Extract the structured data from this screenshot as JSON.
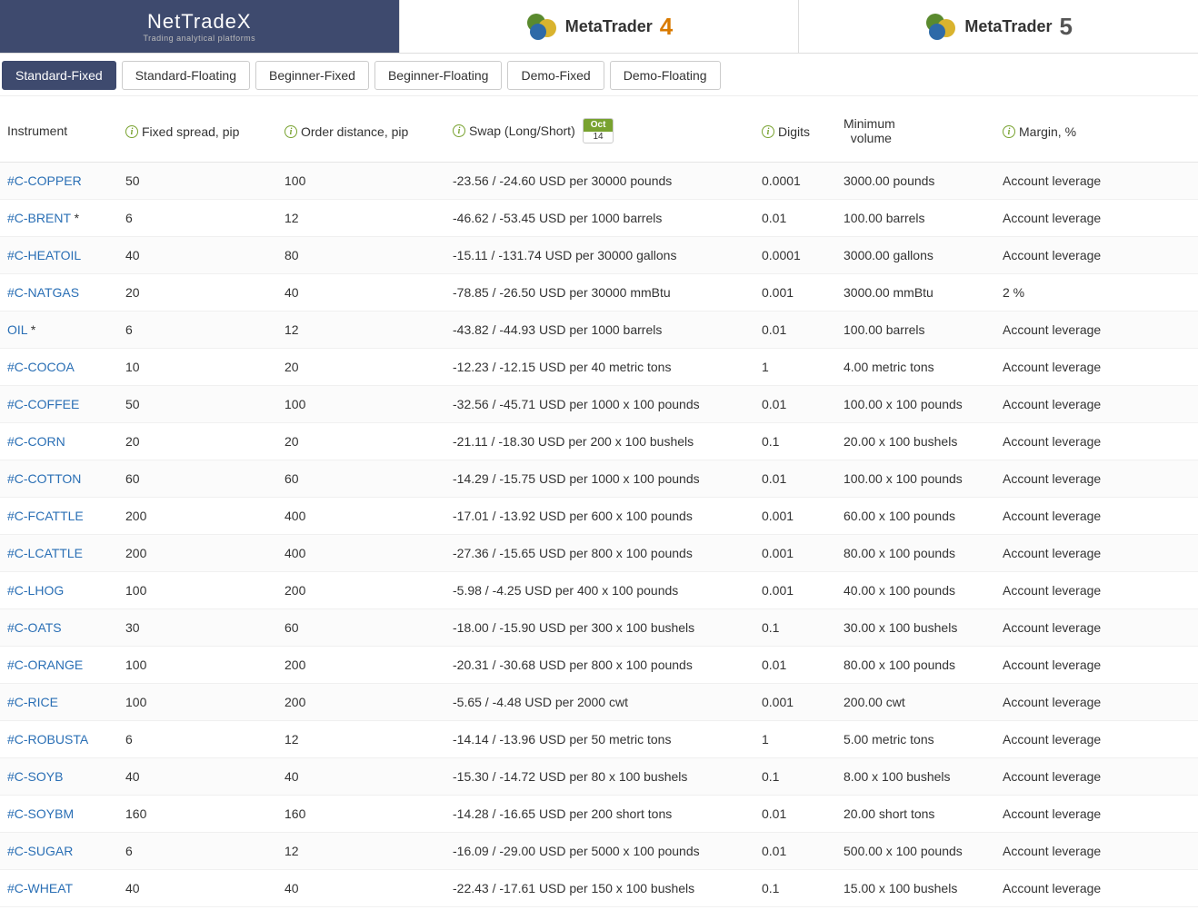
{
  "topTabs": {
    "nettradex": {
      "main": "NetTradeX",
      "sub": "Trading analytical platforms"
    },
    "mt4": {
      "text": "MetaTrader",
      "num": "4"
    },
    "mt5": {
      "text": "MetaTrader",
      "num": "5"
    }
  },
  "subTabs": [
    {
      "label": "Standard-Fixed",
      "active": true
    },
    {
      "label": "Standard-Floating",
      "active": false
    },
    {
      "label": "Beginner-Fixed",
      "active": false
    },
    {
      "label": "Beginner-Floating",
      "active": false
    },
    {
      "label": "Demo-Fixed",
      "active": false
    },
    {
      "label": "Demo-Floating",
      "active": false
    }
  ],
  "columns": {
    "instrument": "Instrument",
    "spread": "Fixed spread, pip",
    "order": "Order distance, pip",
    "swap": "Swap (Long/Short)",
    "digits": "Digits",
    "minvol_line1": "Minimum",
    "minvol_line2": "volume",
    "margin": "Margin, %"
  },
  "dateBadge": {
    "month": "Oct",
    "day": "14"
  },
  "rows": [
    {
      "instrument": "#C-COPPER",
      "star": false,
      "spread": "50",
      "order": "100",
      "swap": "-23.56 / -24.60 USD per 30000 pounds",
      "digits": "0.0001",
      "minvol": "3000.00 pounds",
      "margin": "Account leverage"
    },
    {
      "instrument": "#C-BRENT",
      "star": true,
      "spread": "6",
      "order": "12",
      "swap": "-46.62 / -53.45 USD per 1000 barrels",
      "digits": "0.01",
      "minvol": "100.00 barrels",
      "margin": "Account leverage"
    },
    {
      "instrument": "#C-HEATOIL",
      "star": false,
      "spread": "40",
      "order": "80",
      "swap": "-15.11 / -131.74 USD per 30000 gallons",
      "digits": "0.0001",
      "minvol": "3000.00 gallons",
      "margin": "Account leverage"
    },
    {
      "instrument": "#C-NATGAS",
      "star": false,
      "spread": "20",
      "order": "40",
      "swap": "-78.85 / -26.50 USD per 30000 mmBtu",
      "digits": "0.001",
      "minvol": "3000.00 mmBtu",
      "margin": "2 %"
    },
    {
      "instrument": "OIL",
      "star": true,
      "spread": "6",
      "order": "12",
      "swap": "-43.82 / -44.93 USD per 1000 barrels",
      "digits": "0.01",
      "minvol": "100.00 barrels",
      "margin": "Account leverage"
    },
    {
      "instrument": "#C-COCOA",
      "star": false,
      "spread": "10",
      "order": "20",
      "swap": "-12.23 / -12.15 USD per 40 metric tons",
      "digits": "1",
      "minvol": "4.00 metric tons",
      "margin": "Account leverage"
    },
    {
      "instrument": "#C-COFFEE",
      "star": false,
      "spread": "50",
      "order": "100",
      "swap": "-32.56 / -45.71 USD per 1000 x 100 pounds",
      "digits": "0.01",
      "minvol": "100.00 x 100 pounds",
      "margin": "Account leverage"
    },
    {
      "instrument": "#C-CORN",
      "star": false,
      "spread": "20",
      "order": "20",
      "swap": "-21.11 / -18.30 USD per 200 x 100 bushels",
      "digits": "0.1",
      "minvol": "20.00 x 100 bushels",
      "margin": "Account leverage"
    },
    {
      "instrument": "#C-COTTON",
      "star": false,
      "spread": "60",
      "order": "60",
      "swap": "-14.29 / -15.75 USD per 1000 x 100 pounds",
      "digits": "0.01",
      "minvol": "100.00 x 100 pounds",
      "margin": "Account leverage"
    },
    {
      "instrument": "#C-FCATTLE",
      "star": false,
      "spread": "200",
      "order": "400",
      "swap": "-17.01 / -13.92 USD per 600 x 100 pounds",
      "digits": "0.001",
      "minvol": "60.00 x 100 pounds",
      "margin": "Account leverage"
    },
    {
      "instrument": "#C-LCATTLE",
      "star": false,
      "spread": "200",
      "order": "400",
      "swap": "-27.36 / -15.65 USD per 800 x 100 pounds",
      "digits": "0.001",
      "minvol": "80.00 x 100 pounds",
      "margin": "Account leverage"
    },
    {
      "instrument": "#C-LHOG",
      "star": false,
      "spread": "100",
      "order": "200",
      "swap": "-5.98 / -4.25 USD per 400 x 100 pounds",
      "digits": "0.001",
      "minvol": "40.00 x 100 pounds",
      "margin": "Account leverage"
    },
    {
      "instrument": "#C-OATS",
      "star": false,
      "spread": "30",
      "order": "60",
      "swap": "-18.00 / -15.90 USD per 300 x 100 bushels",
      "digits": "0.1",
      "minvol": "30.00 x 100 bushels",
      "margin": "Account leverage"
    },
    {
      "instrument": "#C-ORANGE",
      "star": false,
      "spread": "100",
      "order": "200",
      "swap": "-20.31 / -30.68 USD per 800 x 100 pounds",
      "digits": "0.01",
      "minvol": "80.00 x 100 pounds",
      "margin": "Account leverage"
    },
    {
      "instrument": "#C-RICE",
      "star": false,
      "spread": "100",
      "order": "200",
      "swap": "-5.65 / -4.48 USD per 2000 cwt",
      "digits": "0.001",
      "minvol": "200.00 cwt",
      "margin": "Account leverage"
    },
    {
      "instrument": "#C-ROBUSTA",
      "star": false,
      "spread": "6",
      "order": "12",
      "swap": "-14.14 / -13.96 USD per 50 metric tons",
      "digits": "1",
      "minvol": "5.00 metric tons",
      "margin": "Account leverage"
    },
    {
      "instrument": "#C-SOYB",
      "star": false,
      "spread": "40",
      "order": "40",
      "swap": "-15.30 / -14.72 USD per 80 x 100 bushels",
      "digits": "0.1",
      "minvol": "8.00 x 100 bushels",
      "margin": "Account leverage"
    },
    {
      "instrument": "#C-SOYBM",
      "star": false,
      "spread": "160",
      "order": "160",
      "swap": "-14.28 / -16.65 USD per 200 short tons",
      "digits": "0.01",
      "minvol": "20.00 short tons",
      "margin": "Account leverage"
    },
    {
      "instrument": "#C-SUGAR",
      "star": false,
      "spread": "6",
      "order": "12",
      "swap": "-16.09 / -29.00 USD per 5000 x 100 pounds",
      "digits": "0.01",
      "minvol": "500.00 x 100 pounds",
      "margin": "Account leverage"
    },
    {
      "instrument": "#C-WHEAT",
      "star": false,
      "spread": "40",
      "order": "40",
      "swap": "-22.43 / -17.61 USD per 150 x 100 bushels",
      "digits": "0.1",
      "minvol": "15.00 x 100 bushels",
      "margin": "Account leverage"
    }
  ]
}
